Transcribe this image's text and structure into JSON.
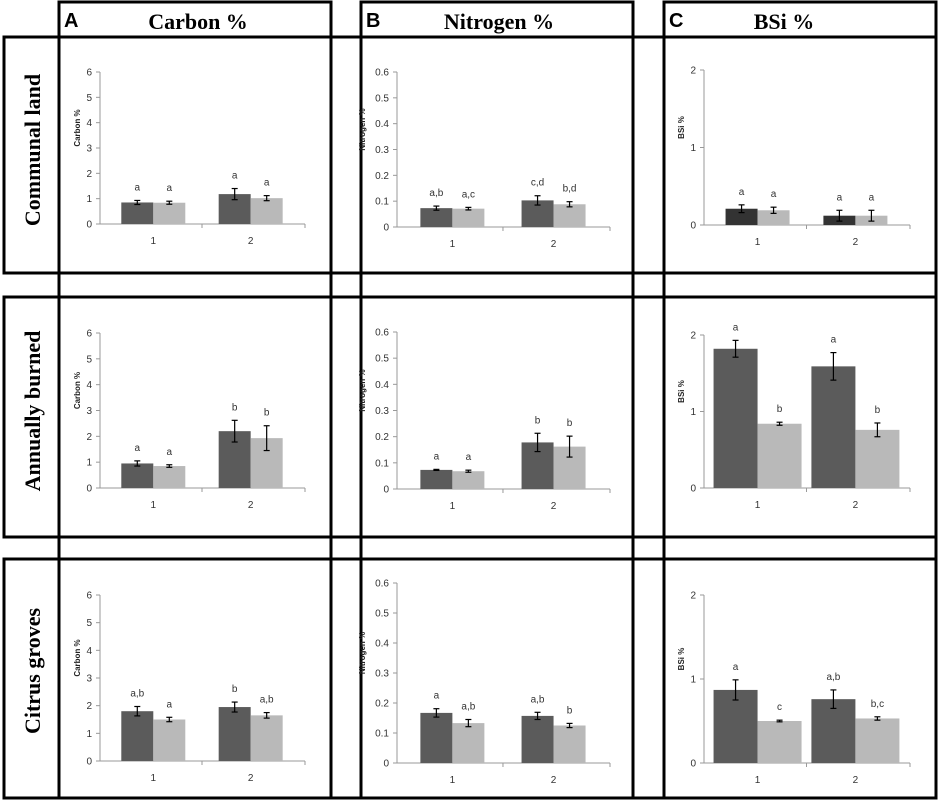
{
  "columns": [
    {
      "letter": "A",
      "title": "Carbon %"
    },
    {
      "letter": "B",
      "title": "Nitrogen %"
    },
    {
      "letter": "C",
      "title": "BSi %"
    }
  ],
  "rows": [
    "Communal land",
    "Annually burned",
    "Citrus groves"
  ],
  "colors": {
    "dark_bar": "#5b5b5b",
    "dark_bar_communal_bsi": "#333333",
    "light_bar": "#b9b9b9",
    "frame": "#000000",
    "axis": "#999999"
  },
  "chart_data": [
    {
      "id": "carbon-communal",
      "type": "bar",
      "ylabel": "Carbon %",
      "ylim": [
        0,
        6
      ],
      "yticks": [
        "0",
        "1",
        "2",
        "3",
        "4",
        "5",
        "6"
      ],
      "categories": [
        "1",
        "2"
      ],
      "series": [
        {
          "name": "dark",
          "values": [
            0.85,
            1.18
          ],
          "errors": [
            0.08,
            0.22
          ]
        },
        {
          "name": "light",
          "values": [
            0.84,
            1.02
          ],
          "errors": [
            0.06,
            0.1
          ]
        }
      ],
      "letters": [
        [
          "a",
          "a"
        ],
        [
          "a",
          "a"
        ]
      ]
    },
    {
      "id": "nitrogen-communal",
      "type": "bar",
      "ylabel": "Nitrogen %",
      "ylim": [
        0,
        0.6
      ],
      "yticks": [
        "0",
        "0.1",
        "0.2",
        "0.3",
        "0.4",
        "0.5",
        "0.6"
      ],
      "categories": [
        "1",
        "2"
      ],
      "series": [
        {
          "name": "dark",
          "values": [
            0.073,
            0.103
          ],
          "errors": [
            0.008,
            0.018
          ]
        },
        {
          "name": "light",
          "values": [
            0.071,
            0.088
          ],
          "errors": [
            0.005,
            0.01
          ]
        }
      ],
      "letters": [
        [
          "a,b",
          "a,c"
        ],
        [
          "c,d",
          "b,d"
        ]
      ]
    },
    {
      "id": "bsi-communal",
      "type": "bar",
      "ylabel": "BSi %",
      "ylim": [
        0,
        2
      ],
      "yticks": [
        "0",
        "1",
        "2"
      ],
      "categories": [
        "1",
        "2"
      ],
      "series": [
        {
          "name": "dark",
          "values": [
            0.21,
            0.12
          ],
          "errors": [
            0.05,
            0.07
          ]
        },
        {
          "name": "light",
          "values": [
            0.19,
            0.12
          ],
          "errors": [
            0.04,
            0.07
          ]
        }
      ],
      "letters": [
        [
          "a",
          "a"
        ],
        [
          "a",
          "a"
        ]
      ]
    },
    {
      "id": "carbon-burned",
      "type": "bar",
      "ylabel": "Carbon %",
      "ylim": [
        0,
        6
      ],
      "yticks": [
        "0",
        "1",
        "2",
        "3",
        "4",
        "5",
        "6"
      ],
      "categories": [
        "1",
        "2"
      ],
      "series": [
        {
          "name": "dark",
          "values": [
            0.95,
            2.2
          ],
          "errors": [
            0.1,
            0.42
          ]
        },
        {
          "name": "light",
          "values": [
            0.85,
            1.93
          ],
          "errors": [
            0.05,
            0.48
          ]
        }
      ],
      "letters": [
        [
          "a",
          "a"
        ],
        [
          "b",
          "b"
        ]
      ]
    },
    {
      "id": "nitrogen-burned",
      "type": "bar",
      "ylabel": "Nitrogen %",
      "ylim": [
        0,
        0.6
      ],
      "yticks": [
        "0",
        "0.1",
        "0.2",
        "0.3",
        "0.4",
        "0.5",
        "0.6"
      ],
      "categories": [
        "1",
        "2"
      ],
      "series": [
        {
          "name": "dark",
          "values": [
            0.073,
            0.178
          ],
          "errors": [
            0.002,
            0.035
          ]
        },
        {
          "name": "light",
          "values": [
            0.068,
            0.162
          ],
          "errors": [
            0.004,
            0.04
          ]
        }
      ],
      "letters": [
        [
          "a",
          "a"
        ],
        [
          "b",
          "b"
        ]
      ]
    },
    {
      "id": "bsi-burned",
      "type": "bar",
      "ylabel": "BSi %",
      "ylim": [
        0,
        2
      ],
      "yticks": [
        "0",
        "1",
        "2"
      ],
      "categories": [
        "1",
        "2"
      ],
      "series": [
        {
          "name": "dark",
          "values": [
            1.82,
            1.59
          ],
          "errors": [
            0.11,
            0.18
          ]
        },
        {
          "name": "light",
          "values": [
            0.84,
            0.76
          ],
          "errors": [
            0.02,
            0.09
          ]
        }
      ],
      "letters": [
        [
          "a",
          "b"
        ],
        [
          "a",
          "b"
        ]
      ]
    },
    {
      "id": "carbon-citrus",
      "type": "bar",
      "ylabel": "Carbon %",
      "ylim": [
        0,
        6
      ],
      "yticks": [
        "0",
        "1",
        "2",
        "3",
        "4",
        "5",
        "6"
      ],
      "categories": [
        "1",
        "2"
      ],
      "series": [
        {
          "name": "dark",
          "values": [
            1.8,
            1.95
          ],
          "errors": [
            0.17,
            0.18
          ]
        },
        {
          "name": "light",
          "values": [
            1.5,
            1.65
          ],
          "errors": [
            0.08,
            0.1
          ]
        }
      ],
      "letters": [
        [
          "a,b",
          "a"
        ],
        [
          "b",
          "a,b"
        ]
      ]
    },
    {
      "id": "nitrogen-citrus",
      "type": "bar",
      "ylabel": "Nitrogen %",
      "ylim": [
        0,
        0.6
      ],
      "yticks": [
        "0",
        "0.1",
        "0.2",
        "0.3",
        "0.4",
        "0.5",
        "0.6"
      ],
      "categories": [
        "1",
        "2"
      ],
      "series": [
        {
          "name": "dark",
          "values": [
            0.167,
            0.157
          ],
          "errors": [
            0.014,
            0.012
          ]
        },
        {
          "name": "light",
          "values": [
            0.133,
            0.125
          ],
          "errors": [
            0.012,
            0.007
          ]
        }
      ],
      "letters": [
        [
          "a",
          "a,b"
        ],
        [
          "a,b",
          "b"
        ]
      ]
    },
    {
      "id": "bsi-citrus",
      "type": "bar",
      "ylabel": "BSi %",
      "ylim": [
        0,
        2
      ],
      "yticks": [
        "0",
        "1",
        "2"
      ],
      "categories": [
        "1",
        "2"
      ],
      "series": [
        {
          "name": "dark",
          "values": [
            0.87,
            0.76
          ],
          "errors": [
            0.12,
            0.11
          ]
        },
        {
          "name": "light",
          "values": [
            0.5,
            0.53
          ],
          "errors": [
            0.01,
            0.02
          ]
        }
      ],
      "letters": [
        [
          "a",
          "c"
        ],
        [
          "a,b",
          "b,c"
        ]
      ]
    }
  ]
}
